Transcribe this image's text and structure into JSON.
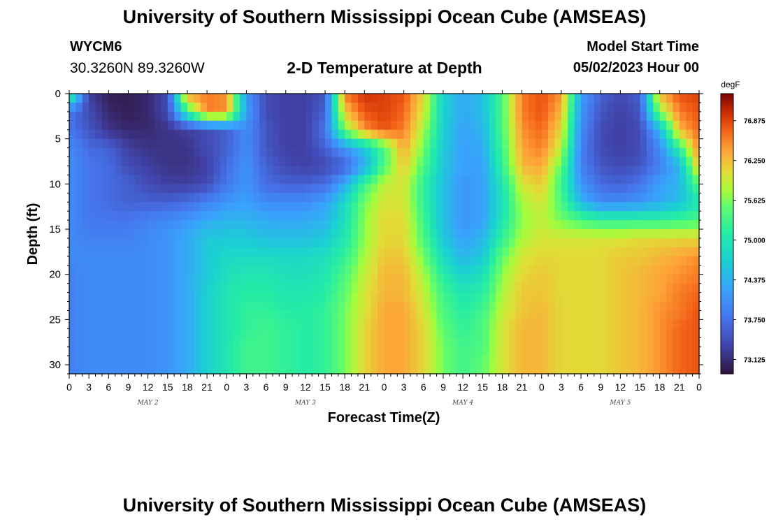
{
  "header": {
    "title": "University of Southern Mississippi Ocean Cube (AMSEAS)",
    "station_id": "WYCM6",
    "station_coords": "30.3260N  89.3260W",
    "subtitle": "2-D Temperature at Depth",
    "model_start_label": "Model Start Time",
    "model_start_value": "05/02/2023 Hour 00"
  },
  "footer": {
    "title": "University of Southern Mississippi Ocean Cube (AMSEAS)"
  },
  "chart_data": {
    "type": "heatmap",
    "xlabel": "Forecast Time(Z)",
    "ylabel": "Depth (ft)",
    "x_unit": "forecast hours from 05/02/2023 00Z",
    "xlim": [
      0,
      96
    ],
    "ylim": [
      0,
      31
    ],
    "y_inverted": true,
    "x_tick_labels": [
      "0",
      "3",
      "6",
      "9",
      "12",
      "15",
      "18",
      "21",
      "0",
      "3",
      "6",
      "9",
      "12",
      "15",
      "18",
      "21",
      "0",
      "3",
      "6",
      "9",
      "12",
      "15",
      "18",
      "21",
      "0",
      "3",
      "6",
      "9",
      "12",
      "15",
      "18",
      "21",
      "0"
    ],
    "y_ticks": [
      0,
      5,
      10,
      15,
      20,
      25,
      30
    ],
    "day_labels": [
      {
        "label": "MAY 2",
        "hour": 12
      },
      {
        "label": "MAY 3",
        "hour": 36
      },
      {
        "label": "MAY 4",
        "hour": 60
      },
      {
        "label": "MAY 5",
        "hour": 84
      }
    ],
    "colorbar": {
      "unit": "degF",
      "min": 72.9,
      "max": 77.3,
      "ticks": [
        "73.125",
        "73.750",
        "74.375",
        "75.000",
        "75.625",
        "76.250",
        "76.875"
      ],
      "colormap": "turbo"
    },
    "grid": false,
    "depths_ft": [
      0,
      2,
      4,
      6,
      8,
      10,
      12,
      14,
      16,
      18,
      20,
      22,
      24,
      26,
      28,
      30
    ],
    "hours": [
      0,
      3,
      6,
      9,
      12,
      15,
      18,
      21,
      24,
      27,
      30,
      33,
      36,
      39,
      42,
      45,
      48,
      51,
      54,
      57,
      60,
      63,
      66,
      69,
      72,
      75,
      78,
      81,
      84,
      87,
      90,
      93,
      96
    ],
    "temperature_degF": [
      [
        75.5,
        73.3,
        73.0,
        73.0,
        73.1,
        73.4,
        76.5,
        76.6,
        76.5,
        74.1,
        73.4,
        73.3,
        73.3,
        73.5,
        76.6,
        77.0,
        76.9,
        76.8,
        76.1,
        74.7,
        74.3,
        74.5,
        75.4,
        76.6,
        76.8,
        76.5,
        74.2,
        73.6,
        73.4,
        73.6,
        76.3,
        76.8,
        76.9
      ],
      [
        73.8,
        73.4,
        73.1,
        73.0,
        73.1,
        73.4,
        75.2,
        76.6,
        76.5,
        74.2,
        73.4,
        73.3,
        73.3,
        73.6,
        76.2,
        76.8,
        76.9,
        76.7,
        76.0,
        74.7,
        74.3,
        74.5,
        75.4,
        76.6,
        76.8,
        76.3,
        74.1,
        73.5,
        73.3,
        73.5,
        75.7,
        76.6,
        76.8
      ],
      [
        73.8,
        73.5,
        73.2,
        73.1,
        73.1,
        73.2,
        73.3,
        73.4,
        73.6,
        74.0,
        73.5,
        73.3,
        73.3,
        73.8,
        75.6,
        76.5,
        76.8,
        76.6,
        75.8,
        74.7,
        74.2,
        74.4,
        75.4,
        76.5,
        76.7,
        76.1,
        74.0,
        73.4,
        73.3,
        73.4,
        74.4,
        76.3,
        76.7
      ],
      [
        74.0,
        73.7,
        73.6,
        73.3,
        73.2,
        73.2,
        73.2,
        73.4,
        73.6,
        74.0,
        73.5,
        73.3,
        73.3,
        73.6,
        74.1,
        74.6,
        75.4,
        76.4,
        75.6,
        74.6,
        74.2,
        74.3,
        75.3,
        76.4,
        76.6,
        75.9,
        73.9,
        73.4,
        73.3,
        73.4,
        74.0,
        75.2,
        76.6
      ],
      [
        74.0,
        73.8,
        73.7,
        73.4,
        73.3,
        73.2,
        73.2,
        73.3,
        73.7,
        74.1,
        73.6,
        73.4,
        73.3,
        73.4,
        73.6,
        74.3,
        75.4,
        76.2,
        75.4,
        74.6,
        74.2,
        74.2,
        75.2,
        76.3,
        76.4,
        75.5,
        73.9,
        73.5,
        73.4,
        73.5,
        73.9,
        74.4,
        76.3
      ],
      [
        74.0,
        73.8,
        73.7,
        73.6,
        73.4,
        73.3,
        73.3,
        73.4,
        73.8,
        74.1,
        73.7,
        73.6,
        73.6,
        73.7,
        74.3,
        75.3,
        75.9,
        76.0,
        75.2,
        74.5,
        74.1,
        74.2,
        75.0,
        76.0,
        76.2,
        75.3,
        74.1,
        73.7,
        73.6,
        73.8,
        74.2,
        74.4,
        75.5
      ],
      [
        74.0,
        73.8,
        73.7,
        73.6,
        73.6,
        73.6,
        73.7,
        73.9,
        74.1,
        74.2,
        74.0,
        74.0,
        74.0,
        74.2,
        74.8,
        75.6,
        76.0,
        76.0,
        75.2,
        74.5,
        74.1,
        74.2,
        74.9,
        75.8,
        76.0,
        75.4,
        74.4,
        74.0,
        74.0,
        74.1,
        74.3,
        74.5,
        75.0
      ],
      [
        74.0,
        73.8,
        73.8,
        73.8,
        73.9,
        74.0,
        74.1,
        74.3,
        74.4,
        74.4,
        74.3,
        74.3,
        74.3,
        74.4,
        74.9,
        75.7,
        76.1,
        76.1,
        75.3,
        74.5,
        74.1,
        74.2,
        75.0,
        75.7,
        75.9,
        75.6,
        75.4,
        75.2,
        75.2,
        75.2,
        75.2,
        75.3,
        75.4
      ],
      [
        74.0,
        73.9,
        73.9,
        73.9,
        74.0,
        74.1,
        74.3,
        74.6,
        74.6,
        74.6,
        74.5,
        74.5,
        74.5,
        74.6,
        75.0,
        75.7,
        76.1,
        76.1,
        75.4,
        74.6,
        74.2,
        74.4,
        75.2,
        75.8,
        76.0,
        76.0,
        76.0,
        76.0,
        76.0,
        76.1,
        76.1,
        76.1,
        76.1
      ],
      [
        74.0,
        74.0,
        74.0,
        74.0,
        74.0,
        74.1,
        74.3,
        74.6,
        74.8,
        74.8,
        74.8,
        74.8,
        74.8,
        74.9,
        75.2,
        75.8,
        76.2,
        76.2,
        75.6,
        74.8,
        74.4,
        74.6,
        75.5,
        76.0,
        76.1,
        76.1,
        76.1,
        76.1,
        76.2,
        76.2,
        76.3,
        76.4,
        76.5
      ],
      [
        73.9,
        74.0,
        74.0,
        74.0,
        74.0,
        74.1,
        74.3,
        74.6,
        74.9,
        75.0,
        75.0,
        74.9,
        74.9,
        75.0,
        75.4,
        75.9,
        76.3,
        76.3,
        75.8,
        75.1,
        74.7,
        74.9,
        75.7,
        76.1,
        76.2,
        76.1,
        76.1,
        76.1,
        76.2,
        76.3,
        76.4,
        76.5,
        76.6
      ],
      [
        73.9,
        74.0,
        74.0,
        74.0,
        74.0,
        74.1,
        74.3,
        74.7,
        75.0,
        75.1,
        75.1,
        75.0,
        75.0,
        75.1,
        75.5,
        76.0,
        76.3,
        76.3,
        75.9,
        75.3,
        75.0,
        75.1,
        75.8,
        76.2,
        76.2,
        76.1,
        76.1,
        76.1,
        76.2,
        76.3,
        76.4,
        76.6,
        76.7
      ],
      [
        73.9,
        74.0,
        74.0,
        74.0,
        74.0,
        74.1,
        74.3,
        74.7,
        75.0,
        75.2,
        75.2,
        75.1,
        75.1,
        75.2,
        75.6,
        76.0,
        76.4,
        76.4,
        76.0,
        75.4,
        75.1,
        75.3,
        75.9,
        76.2,
        76.3,
        76.1,
        76.1,
        76.1,
        76.2,
        76.3,
        76.5,
        76.6,
        76.8
      ],
      [
        73.9,
        74.0,
        74.0,
        74.0,
        74.0,
        74.1,
        74.3,
        74.7,
        75.0,
        75.2,
        75.3,
        75.2,
        75.1,
        75.2,
        75.6,
        76.1,
        76.4,
        76.4,
        76.1,
        75.5,
        75.2,
        75.4,
        76.0,
        76.3,
        76.3,
        76.1,
        76.1,
        76.1,
        76.2,
        76.3,
        76.5,
        76.7,
        76.8
      ],
      [
        73.9,
        74.0,
        74.0,
        74.0,
        74.0,
        74.1,
        74.3,
        74.7,
        75.0,
        75.3,
        75.3,
        75.2,
        75.1,
        75.2,
        75.6,
        76.1,
        76.4,
        76.4,
        76.1,
        75.6,
        75.3,
        75.4,
        76.0,
        76.3,
        76.3,
        76.1,
        76.1,
        76.1,
        76.2,
        76.3,
        76.5,
        76.7,
        76.8
      ],
      [
        73.9,
        74.0,
        74.0,
        74.0,
        74.0,
        74.1,
        74.3,
        74.7,
        75.0,
        75.3,
        75.3,
        75.2,
        75.1,
        75.2,
        75.6,
        76.1,
        76.4,
        76.4,
        76.1,
        75.6,
        75.3,
        75.5,
        76.0,
        76.3,
        76.3,
        76.1,
        76.1,
        76.1,
        76.2,
        76.3,
        76.5,
        76.7,
        76.8
      ]
    ]
  }
}
